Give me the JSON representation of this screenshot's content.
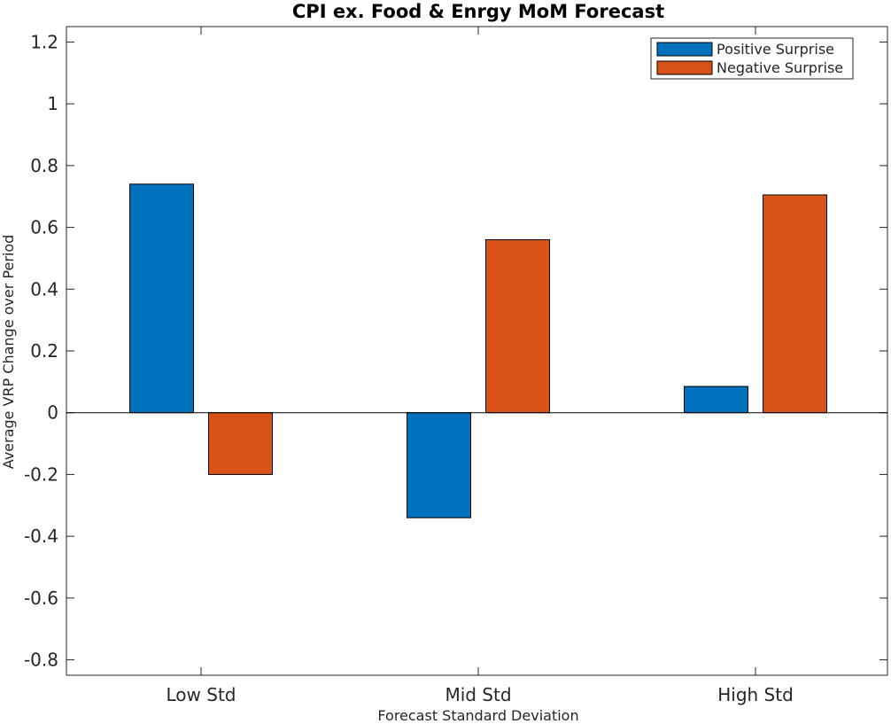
{
  "chart_data": {
    "type": "bar",
    "title": "CPI ex. Food & Enrgy MoM Forecast",
    "xlabel": "Forecast Standard Deviation",
    "ylabel": "Average VRP Change over Period",
    "categories": [
      "Low Std",
      "Mid Std",
      "High Std"
    ],
    "series": [
      {
        "name": "Positive Surprise",
        "color": "#0072BD",
        "values": [
          0.74,
          -0.34,
          0.085
        ]
      },
      {
        "name": "Negative Surprise",
        "color": "#D95319",
        "values": [
          -0.2,
          0.56,
          0.705
        ]
      }
    ],
    "ylim": [
      -0.85,
      1.25
    ],
    "yticks": [
      -0.8,
      -0.6,
      -0.4,
      -0.2,
      0,
      0.2,
      0.4,
      0.6,
      0.8,
      1,
      1.2
    ],
    "ytick_labels": [
      "-0.8",
      "-0.6",
      "-0.4",
      "-0.2",
      "0",
      "0.2",
      "0.4",
      "0.6",
      "0.8",
      "1",
      "1.2"
    ],
    "grid": false,
    "legend_position": "top-right"
  }
}
